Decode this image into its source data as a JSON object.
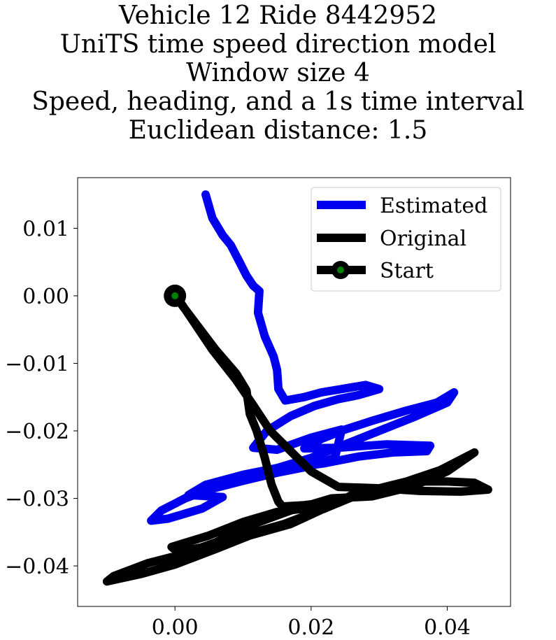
{
  "chart_data": {
    "type": "line",
    "title_lines": [
      "Vehicle 12 Ride 8442952",
      "UniTS time speed direction model",
      "Window size 4",
      "Speed, heading, and a 1s time interval",
      "Euclidean distance: 1.5"
    ],
    "xlabel": "",
    "ylabel": "",
    "xlim": [
      -0.0143,
      0.0493
    ],
    "ylim": [
      -0.046,
      0.0175
    ],
    "xticks": [
      0.0,
      0.02,
      0.04
    ],
    "xtick_labels": [
      "0.00",
      "0.02",
      "0.04"
    ],
    "yticks": [
      0.01,
      0.0,
      -0.01,
      -0.02,
      -0.03,
      -0.04
    ],
    "ytick_labels": [
      "0.01",
      "0.00",
      "−0.01",
      "−0.02",
      "−0.03",
      "−0.04"
    ],
    "grid": false,
    "legend": {
      "placement": "upper right",
      "entries": [
        "Estimated",
        "Original",
        "Start"
      ]
    },
    "series": [
      {
        "name": "Estimated",
        "color": "#0000ee",
        "points": [
          [
            0.0045,
            0.015
          ],
          [
            0.0055,
            0.0115
          ],
          [
            0.007,
            0.009
          ],
          [
            0.0082,
            0.0075
          ],
          [
            0.0095,
            0.005
          ],
          [
            0.0105,
            0.003
          ],
          [
            0.0115,
            0.0015
          ],
          [
            0.0124,
            0.0007
          ],
          [
            0.0122,
            -0.0025
          ],
          [
            0.0132,
            -0.006
          ],
          [
            0.0145,
            -0.009
          ],
          [
            0.015,
            -0.011
          ],
          [
            0.0152,
            -0.0138
          ],
          [
            0.0162,
            -0.0155
          ],
          [
            0.019,
            -0.015
          ],
          [
            0.0215,
            -0.0143
          ],
          [
            0.0245,
            -0.0138
          ],
          [
            0.028,
            -0.0132
          ],
          [
            0.03,
            -0.0138
          ],
          [
            0.027,
            -0.0147
          ],
          [
            0.024,
            -0.0153
          ],
          [
            0.0205,
            -0.0163
          ],
          [
            0.017,
            -0.0178
          ],
          [
            0.0135,
            -0.02
          ],
          [
            0.0115,
            -0.0225
          ],
          [
            0.015,
            -0.0228
          ],
          [
            0.02,
            -0.021
          ],
          [
            0.0245,
            -0.0198
          ],
          [
            0.0235,
            -0.024
          ],
          [
            0.02,
            -0.0252
          ],
          [
            0.015,
            -0.0262
          ],
          [
            0.01,
            -0.0274
          ],
          [
            0.005,
            -0.0287
          ],
          [
            0.0015,
            -0.03
          ],
          [
            -0.002,
            -0.0318
          ],
          [
            -0.0035,
            -0.0333
          ],
          [
            -0.001,
            -0.033
          ],
          [
            0.004,
            -0.0315
          ],
          [
            0.007,
            -0.0298
          ],
          [
            0.002,
            -0.0295
          ],
          [
            0.0045,
            -0.028
          ],
          [
            0.01,
            -0.0265
          ],
          [
            0.015,
            -0.0255
          ],
          [
            0.02,
            -0.024
          ],
          [
            0.025,
            -0.022
          ],
          [
            0.03,
            -0.02
          ],
          [
            0.035,
            -0.018
          ],
          [
            0.04,
            -0.0158
          ],
          [
            0.041,
            -0.0143
          ],
          [
            0.0385,
            -0.0158
          ],
          [
            0.034,
            -0.017
          ],
          [
            0.029,
            -0.0185
          ],
          [
            0.025,
            -0.0198
          ],
          [
            0.0215,
            -0.0212
          ],
          [
            0.019,
            -0.0226
          ],
          [
            0.024,
            -0.0225
          ],
          [
            0.031,
            -0.022
          ],
          [
            0.0375,
            -0.0222
          ],
          [
            0.037,
            -0.023
          ],
          [
            0.032,
            -0.0232
          ],
          [
            0.027,
            -0.0238
          ],
          [
            0.022,
            -0.0248
          ],
          [
            0.017,
            -0.0255
          ],
          [
            0.012,
            -0.0265
          ],
          [
            0.008,
            -0.0275
          ],
          [
            0.004,
            -0.0287
          ],
          [
            0.0005,
            -0.0305
          ]
        ]
      },
      {
        "name": "Original",
        "color": "#000000",
        "points": [
          [
            0.0,
            0.0
          ],
          [
            0.003,
            -0.004
          ],
          [
            0.006,
            -0.008
          ],
          [
            0.009,
            -0.0115
          ],
          [
            0.0105,
            -0.014
          ],
          [
            0.011,
            -0.0175
          ],
          [
            0.012,
            -0.02
          ],
          [
            0.0132,
            -0.024
          ],
          [
            0.0142,
            -0.028
          ],
          [
            0.0152,
            -0.0305
          ],
          [
            0.0158,
            -0.0312
          ],
          [
            0.019,
            -0.031
          ],
          [
            0.023,
            -0.0305
          ],
          [
            0.019,
            -0.0315
          ],
          [
            0.015,
            -0.032
          ],
          [
            0.01,
            -0.0335
          ],
          [
            0.005,
            -0.0355
          ],
          [
            -0.0005,
            -0.0372
          ],
          [
            0.0005,
            -0.038
          ],
          [
            0.005,
            -0.037
          ],
          [
            0.01,
            -0.0355
          ],
          [
            0.016,
            -0.0338
          ],
          [
            0.022,
            -0.0315
          ],
          [
            0.028,
            -0.029
          ],
          [
            0.034,
            -0.0275
          ],
          [
            0.039,
            -0.0258
          ],
          [
            0.044,
            -0.0232
          ],
          [
            0.04,
            -0.026
          ],
          [
            0.035,
            -0.0282
          ],
          [
            0.029,
            -0.0297
          ],
          [
            0.023,
            -0.03
          ],
          [
            0.017,
            -0.0318
          ],
          [
            0.011,
            -0.034
          ],
          [
            0.006,
            -0.0365
          ],
          [
            0.001,
            -0.0383
          ],
          [
            -0.004,
            -0.0396
          ],
          [
            -0.009,
            -0.0415
          ],
          [
            -0.01,
            -0.0423
          ],
          [
            -0.005,
            -0.0412
          ],
          [
            0.0,
            -0.0398
          ],
          [
            0.006,
            -0.0375
          ],
          [
            0.011,
            -0.0355
          ],
          [
            0.017,
            -0.0338
          ],
          [
            0.023,
            -0.031
          ],
          [
            0.027,
            -0.029
          ],
          [
            0.031,
            -0.0285
          ],
          [
            0.036,
            -0.0275
          ],
          [
            0.04,
            -0.0275
          ],
          [
            0.044,
            -0.0277
          ],
          [
            0.046,
            -0.0287
          ],
          [
            0.042,
            -0.029
          ],
          [
            0.036,
            -0.0289
          ],
          [
            0.03,
            -0.0285
          ],
          [
            0.024,
            -0.0283
          ],
          [
            0.02,
            -0.026
          ],
          [
            0.017,
            -0.023
          ],
          [
            0.014,
            -0.02
          ],
          [
            0.0115,
            -0.0162
          ],
          [
            0.009,
            -0.0125
          ],
          [
            0.0055,
            -0.008
          ],
          [
            0.0025,
            -0.0035
          ],
          [
            0.0005,
            -0.0005
          ]
        ]
      },
      {
        "name": "Start",
        "color": "#000000",
        "marker_color": "#008000",
        "points": [
          [
            0.0,
            0.0
          ]
        ]
      }
    ]
  }
}
